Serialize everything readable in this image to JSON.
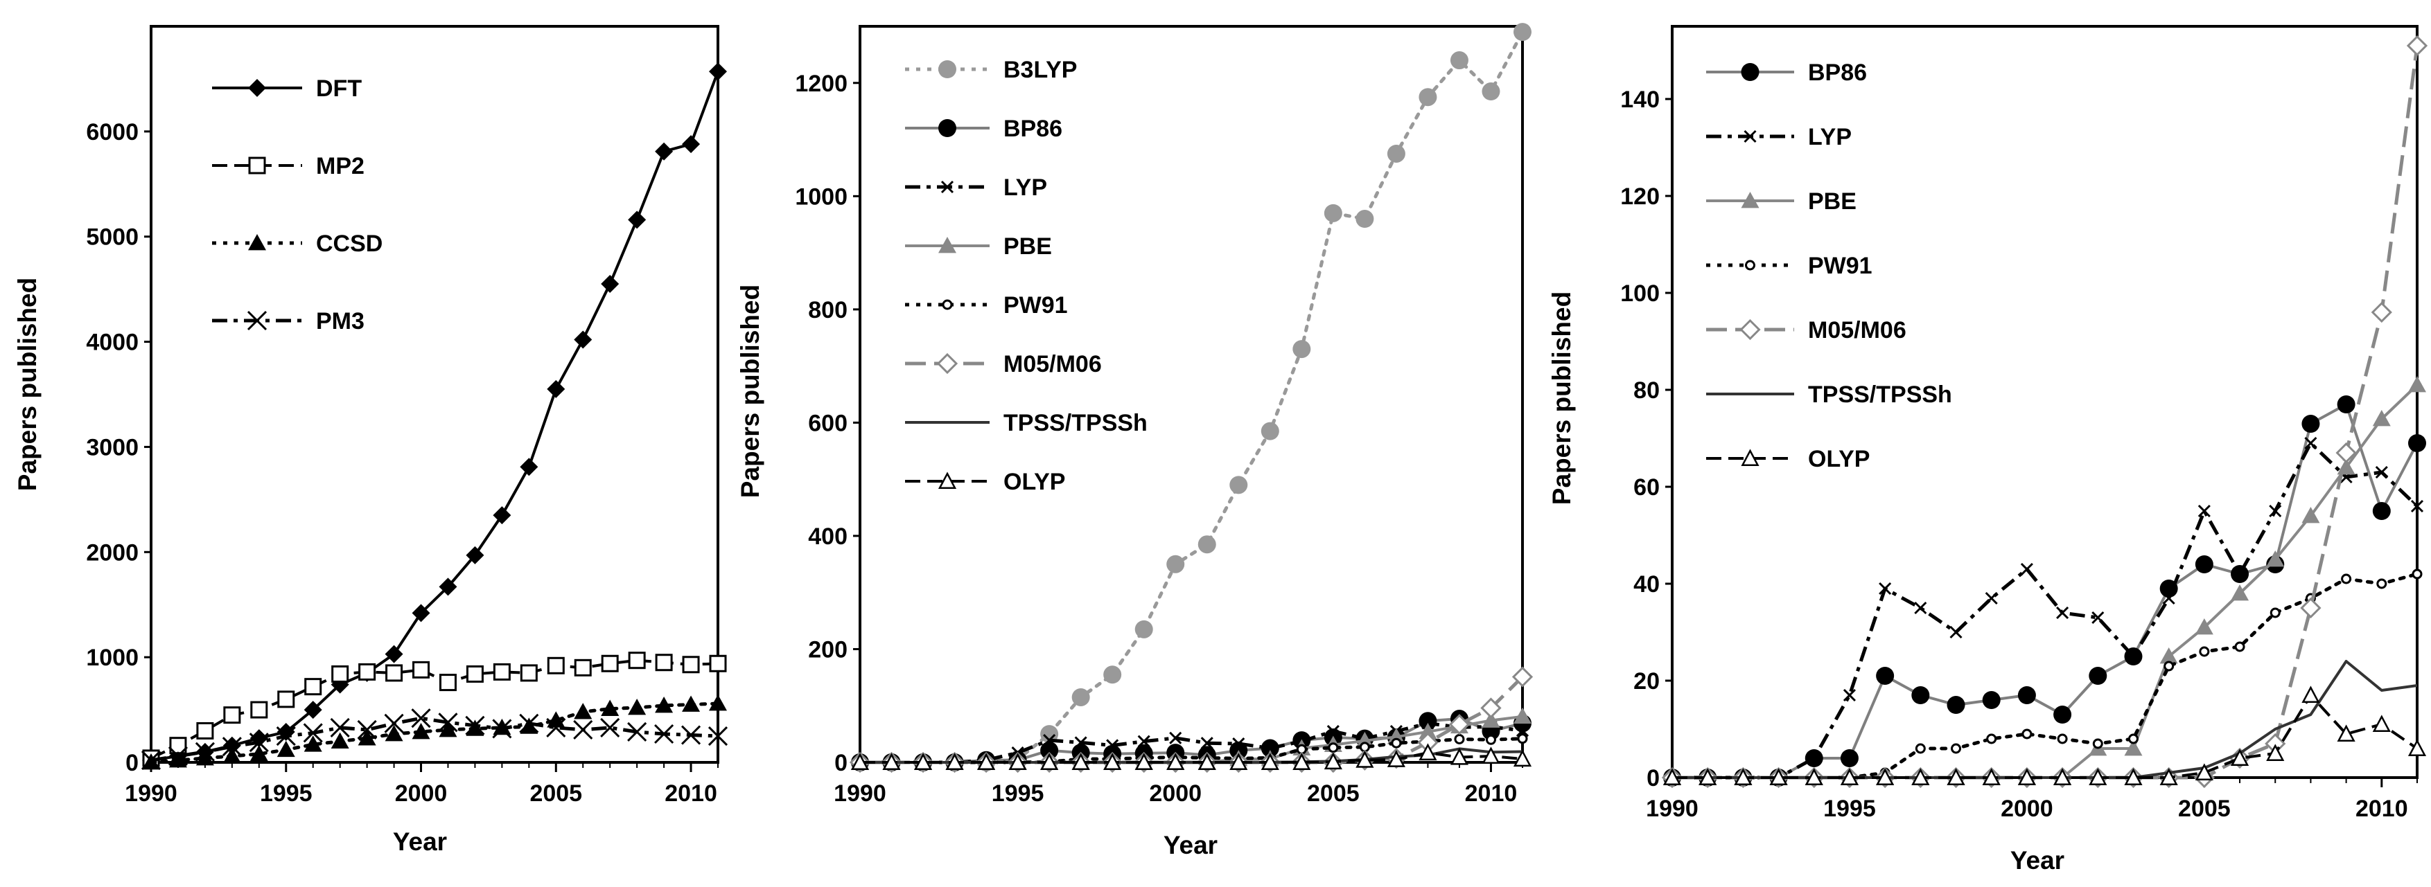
{
  "figure": {
    "background": "#ffffff"
  },
  "chart_data": [
    {
      "type": "line",
      "xlabel": "Year",
      "ylabel": "Papers published",
      "xlim": [
        1990,
        2011
      ],
      "ylim": [
        0,
        7000
      ],
      "xticks": [
        1990,
        1995,
        2000,
        2005,
        2010
      ],
      "yticks": [
        0,
        1000,
        2000,
        3000,
        4000,
        5000,
        6000
      ],
      "grid": false,
      "legend_position": "top-left",
      "x": [
        1990,
        1991,
        1992,
        1993,
        1994,
        1995,
        1996,
        1997,
        1998,
        1999,
        2000,
        2001,
        2002,
        2003,
        2004,
        2005,
        2006,
        2007,
        2008,
        2009,
        2010,
        2011
      ],
      "series": [
        {
          "name": "DFT",
          "color": "#000000",
          "marker": "diamond",
          "line": "solid",
          "values": [
            20,
            60,
            100,
            160,
            230,
            290,
            500,
            740,
            850,
            1030,
            1420,
            1670,
            1970,
            2350,
            2810,
            3550,
            4020,
            4550,
            5160,
            5810,
            5880,
            6570
          ]
        },
        {
          "name": "MP2",
          "color": "#000000",
          "marker": "square-open",
          "line": "dash",
          "values": [
            40,
            160,
            300,
            450,
            500,
            600,
            720,
            840,
            860,
            850,
            880,
            760,
            840,
            860,
            850,
            920,
            900,
            940,
            970,
            950,
            930,
            940
          ]
        },
        {
          "name": "CCSD",
          "color": "#000000",
          "marker": "triangle",
          "line": "dot",
          "values": [
            0,
            20,
            40,
            60,
            80,
            120,
            170,
            200,
            230,
            270,
            290,
            310,
            320,
            330,
            340,
            400,
            480,
            510,
            520,
            540,
            550,
            560
          ]
        },
        {
          "name": "PM3",
          "color": "#000000",
          "marker": "x",
          "line": "dashdot",
          "values": [
            20,
            60,
            100,
            150,
            190,
            250,
            280,
            330,
            310,
            370,
            420,
            380,
            350,
            320,
            370,
            330,
            310,
            330,
            290,
            270,
            260,
            250
          ]
        }
      ]
    },
    {
      "type": "line",
      "xlabel": "Year",
      "ylabel": "Papers published",
      "xlim": [
        1990,
        2011
      ],
      "ylim": [
        0,
        1300
      ],
      "xticks": [
        1990,
        1995,
        2000,
        2005,
        2010
      ],
      "yticks": [
        0,
        200,
        400,
        600,
        800,
        1000,
        1200
      ],
      "grid": false,
      "legend_position": "top-left",
      "x": [
        1990,
        1991,
        1992,
        1993,
        1994,
        1995,
        1996,
        1997,
        1998,
        1999,
        2000,
        2001,
        2002,
        2003,
        2004,
        2005,
        2006,
        2007,
        2008,
        2009,
        2010,
        2011
      ],
      "series": [
        {
          "name": "B3LYP",
          "color": "#999999",
          "marker": "circle",
          "line": "dot",
          "values": [
            0,
            0,
            0,
            0,
            0,
            5,
            50,
            115,
            155,
            235,
            350,
            385,
            490,
            585,
            730,
            970,
            960,
            1075,
            1175,
            1240,
            1185,
            1290
          ]
        },
        {
          "name": "BP86",
          "color": "#000000",
          "marker": "circle",
          "line": "solid-gray",
          "values": [
            0,
            0,
            0,
            0,
            4,
            4,
            21,
            17,
            15,
            16,
            17,
            13,
            21,
            25,
            39,
            44,
            42,
            44,
            73,
            77,
            55,
            69
          ]
        },
        {
          "name": "LYP",
          "color": "#000000",
          "marker": "x-small",
          "line": "dashdot",
          "values": [
            0,
            0,
            0,
            0,
            4,
            17,
            39,
            35,
            30,
            37,
            43,
            34,
            33,
            25,
            37,
            55,
            42,
            55,
            69,
            62,
            63,
            56
          ]
        },
        {
          "name": "PBE",
          "color": "#888888",
          "marker": "triangle",
          "line": "solid",
          "values": [
            0,
            0,
            0,
            0,
            0,
            0,
            0,
            0,
            0,
            0,
            0,
            0,
            6,
            6,
            25,
            31,
            38,
            45,
            54,
            64,
            74,
            81
          ]
        },
        {
          "name": "PW91",
          "color": "#000000",
          "marker": "circle-small-open",
          "line": "dot",
          "values": [
            0,
            0,
            0,
            0,
            0,
            0,
            1,
            6,
            6,
            8,
            9,
            8,
            7,
            8,
            23,
            26,
            27,
            34,
            37,
            41,
            40,
            42
          ]
        },
        {
          "name": "M05/M06",
          "color": "#888888",
          "marker": "diamond-open",
          "line": "longdash",
          "values": [
            0,
            0,
            0,
            0,
            0,
            0,
            0,
            0,
            0,
            0,
            0,
            0,
            0,
            0,
            0,
            0,
            4,
            7,
            35,
            67,
            96,
            151
          ]
        },
        {
          "name": "TPSS/TPSSh",
          "color": "#333333",
          "marker": "none",
          "line": "solid",
          "values": [
            0,
            0,
            0,
            0,
            0,
            0,
            0,
            0,
            0,
            0,
            0,
            0,
            0,
            0,
            1,
            2,
            5,
            10,
            13,
            24,
            18,
            19
          ]
        },
        {
          "name": "OLYP",
          "color": "#000000",
          "marker": "triangle-open",
          "line": "dash",
          "values": [
            0,
            0,
            0,
            0,
            0,
            0,
            0,
            0,
            0,
            0,
            0,
            0,
            0,
            0,
            0,
            1,
            4,
            5,
            17,
            9,
            11,
            6
          ]
        }
      ]
    },
    {
      "type": "line",
      "xlabel": "Year",
      "ylabel": "Papers published",
      "xlim": [
        1990,
        2011
      ],
      "ylim": [
        0,
        155
      ],
      "xticks": [
        1990,
        1995,
        2000,
        2005,
        2010
      ],
      "yticks": [
        0,
        20,
        40,
        60,
        80,
        100,
        120,
        140
      ],
      "grid": false,
      "legend_position": "top-left",
      "x": [
        1990,
        1991,
        1992,
        1993,
        1994,
        1995,
        1996,
        1997,
        1998,
        1999,
        2000,
        2001,
        2002,
        2003,
        2004,
        2005,
        2006,
        2007,
        2008,
        2009,
        2010,
        2011
      ],
      "series": [
        {
          "name": "BP86",
          "color": "#000000",
          "marker": "circle",
          "line": "solid-gray",
          "values": [
            0,
            0,
            0,
            0,
            4,
            4,
            21,
            17,
            15,
            16,
            17,
            13,
            21,
            25,
            39,
            44,
            42,
            44,
            73,
            77,
            55,
            69
          ]
        },
        {
          "name": "LYP",
          "color": "#000000",
          "marker": "x-small",
          "line": "dashdot",
          "values": [
            0,
            0,
            0,
            0,
            4,
            17,
            39,
            35,
            30,
            37,
            43,
            34,
            33,
            25,
            37,
            55,
            42,
            55,
            69,
            62,
            63,
            56
          ]
        },
        {
          "name": "PBE",
          "color": "#888888",
          "marker": "triangle",
          "line": "solid",
          "values": [
            0,
            0,
            0,
            0,
            0,
            0,
            0,
            0,
            0,
            0,
            0,
            0,
            6,
            6,
            25,
            31,
            38,
            45,
            54,
            64,
            74,
            81
          ]
        },
        {
          "name": "PW91",
          "color": "#000000",
          "marker": "circle-small-open",
          "line": "dot",
          "values": [
            0,
            0,
            0,
            0,
            0,
            0,
            1,
            6,
            6,
            8,
            9,
            8,
            7,
            8,
            23,
            26,
            27,
            34,
            37,
            41,
            40,
            42
          ]
        },
        {
          "name": "M05/M06",
          "color": "#888888",
          "marker": "diamond-open",
          "line": "longdash",
          "values": [
            0,
            0,
            0,
            0,
            0,
            0,
            0,
            0,
            0,
            0,
            0,
            0,
            0,
            0,
            0,
            0,
            4,
            7,
            35,
            67,
            96,
            151
          ]
        },
        {
          "name": "TPSS/TPSSh",
          "color": "#333333",
          "marker": "none",
          "line": "solid",
          "values": [
            0,
            0,
            0,
            0,
            0,
            0,
            0,
            0,
            0,
            0,
            0,
            0,
            0,
            0,
            1,
            2,
            5,
            10,
            13,
            24,
            18,
            19
          ]
        },
        {
          "name": "OLYP",
          "color": "#000000",
          "marker": "triangle-open",
          "line": "dash",
          "values": [
            0,
            0,
            0,
            0,
            0,
            0,
            0,
            0,
            0,
            0,
            0,
            0,
            0,
            0,
            0,
            1,
            4,
            5,
            17,
            9,
            11,
            6
          ]
        }
      ]
    }
  ]
}
